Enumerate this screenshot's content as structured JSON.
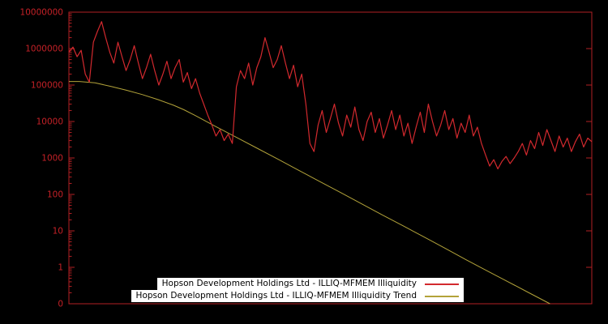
{
  "style": {
    "plot_background": "#000000",
    "axis_color": "#b22024",
    "tick_label_color": "#c42127",
    "legend_background": "#ffffff",
    "legend_text_color": "#000000"
  },
  "chart_data": {
    "type": "line",
    "title": "",
    "xlabel": "",
    "ylabel": "",
    "y_scale": "log",
    "ylim": [
      0.1,
      10000000
    ],
    "grid": false,
    "legend_position": "bottom-center-inside",
    "x_tick_labels": [],
    "y_ticks": [
      {
        "label": "10000000",
        "value": 10000000
      },
      {
        "label": "1000000",
        "value": 1000000
      },
      {
        "label": "100000",
        "value": 100000
      },
      {
        "label": "10000",
        "value": 10000
      },
      {
        "label": "1000",
        "value": 1000
      },
      {
        "label": "100",
        "value": 100
      },
      {
        "label": "10",
        "value": 10
      },
      {
        "label": "1",
        "value": 1
      },
      {
        "label": "0",
        "value": 0.1
      }
    ],
    "series": [
      {
        "name": "Hopson Development Holdings Ltd - ILLIQ-MFMEM Illiquidity",
        "color": "#d2292e",
        "values": [
          800000,
          1100000,
          600000,
          900000,
          200000,
          120000,
          1500000,
          3000000,
          5500000,
          2000000,
          800000,
          400000,
          1500000,
          600000,
          250000,
          500000,
          1200000,
          400000,
          150000,
          300000,
          700000,
          250000,
          100000,
          200000,
          450000,
          150000,
          300000,
          500000,
          120000,
          220000,
          80000,
          150000,
          60000,
          30000,
          15000,
          8000,
          4000,
          6000,
          3000,
          4500,
          2500,
          90000,
          250000,
          150000,
          400000,
          100000,
          300000,
          600000,
          2000000,
          800000,
          300000,
          500000,
          1200000,
          400000,
          150000,
          350000,
          90000,
          200000,
          30000,
          2500,
          1500,
          8000,
          20000,
          5000,
          12000,
          30000,
          9000,
          4000,
          15000,
          7000,
          25000,
          6000,
          3000,
          10000,
          18000,
          5000,
          12000,
          3500,
          8000,
          20000,
          6000,
          15000,
          4000,
          9000,
          2500,
          7000,
          18000,
          5000,
          30000,
          10000,
          4000,
          8000,
          20000,
          6000,
          12000,
          3500,
          9000,
          5000,
          15000,
          4000,
          7000,
          2500,
          1200,
          600,
          900,
          500,
          800,
          1100,
          700,
          1000,
          1500,
          2500,
          1200,
          3000,
          1800,
          5000,
          2200,
          6000,
          3000,
          1500,
          4000,
          2000,
          3500,
          1500,
          2800,
          4500,
          2000,
          3500,
          2800
        ]
      },
      {
        "name": "Hopson Development Holdings Ltd - ILLIQ-MFMEM Illiquidity Trend",
        "color": "#b3a33a",
        "points": [
          [
            0,
            125000
          ],
          [
            0.02,
            125000
          ],
          [
            0.05,
            115000
          ],
          [
            0.08,
            92000
          ],
          [
            0.11,
            72000
          ],
          [
            0.14,
            55000
          ],
          [
            0.17,
            40000
          ],
          [
            0.2,
            28000
          ],
          [
            0.22,
            21000
          ],
          [
            0.24,
            15000
          ],
          [
            0.28,
            7400
          ],
          [
            0.32,
            3700
          ],
          [
            0.36,
            1850
          ],
          [
            0.4,
            920
          ],
          [
            0.44,
            455
          ],
          [
            0.48,
            225
          ],
          [
            0.52,
            112
          ],
          [
            0.56,
            55
          ],
          [
            0.6,
            27
          ],
          [
            0.64,
            13.5
          ],
          [
            0.68,
            6.7
          ],
          [
            0.72,
            3.3
          ],
          [
            0.76,
            1.6
          ],
          [
            0.8,
            0.8
          ],
          [
            0.84,
            0.4
          ],
          [
            0.88,
            0.2
          ],
          [
            0.92,
            0.1
          ]
        ]
      }
    ]
  }
}
